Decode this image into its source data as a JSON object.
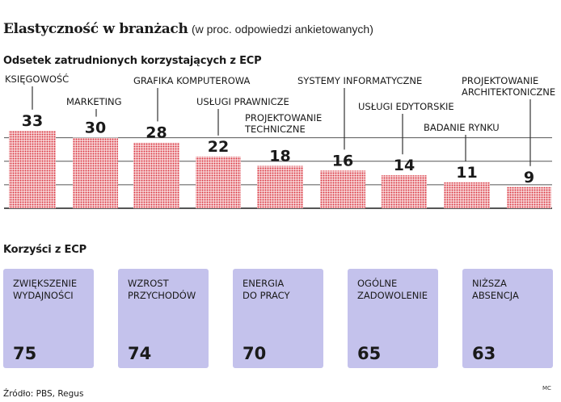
{
  "header": {
    "title": "Elastyczność w branżach",
    "subtitle": "(w proc. odpowiedzi ankietowanych)"
  },
  "chart_data": [
    {
      "type": "bar",
      "title": "Odsetek zatrudnionych korzystających z ECP",
      "categories": [
        "KSIĘGOWOŚĆ",
        "MARKETING",
        "GRAFIKA KOMPUTEROWA",
        "USŁUGI PRAWNICZE",
        "PROJEKTOWANIE\nTECHNICZNE",
        "SYSTEMY INFORMATYCZNE",
        "USŁUGI EDYTORSKIE",
        "BADANIE RYNKU",
        "PROJEKTOWANIE\nARCHITEKTONICZNE"
      ],
      "values": [
        33,
        30,
        28,
        22,
        18,
        16,
        14,
        11,
        9
      ],
      "ylim": [
        0,
        35
      ],
      "grid": true,
      "colors": {
        "bar_pattern": "#d8323c",
        "grid": "#555555",
        "leader": "#333333"
      }
    },
    {
      "type": "table",
      "title": "Korzyści z ECP",
      "categories": [
        "ZWIĘKSZENIE\nWYDAJNOŚCI",
        "WZROST\nPRZYCHODÓW",
        "ENERGIA\nDO PRACY",
        "OGÓLNE\nZADOWOLENIE",
        "NIŻSZA\nABSENCJA"
      ],
      "values": [
        75,
        74,
        70,
        65,
        63
      ],
      "colors": {
        "card": "#c4c2ec"
      }
    }
  ],
  "footer": {
    "source": "Źródło: PBS, Regus",
    "credit": "MC"
  }
}
